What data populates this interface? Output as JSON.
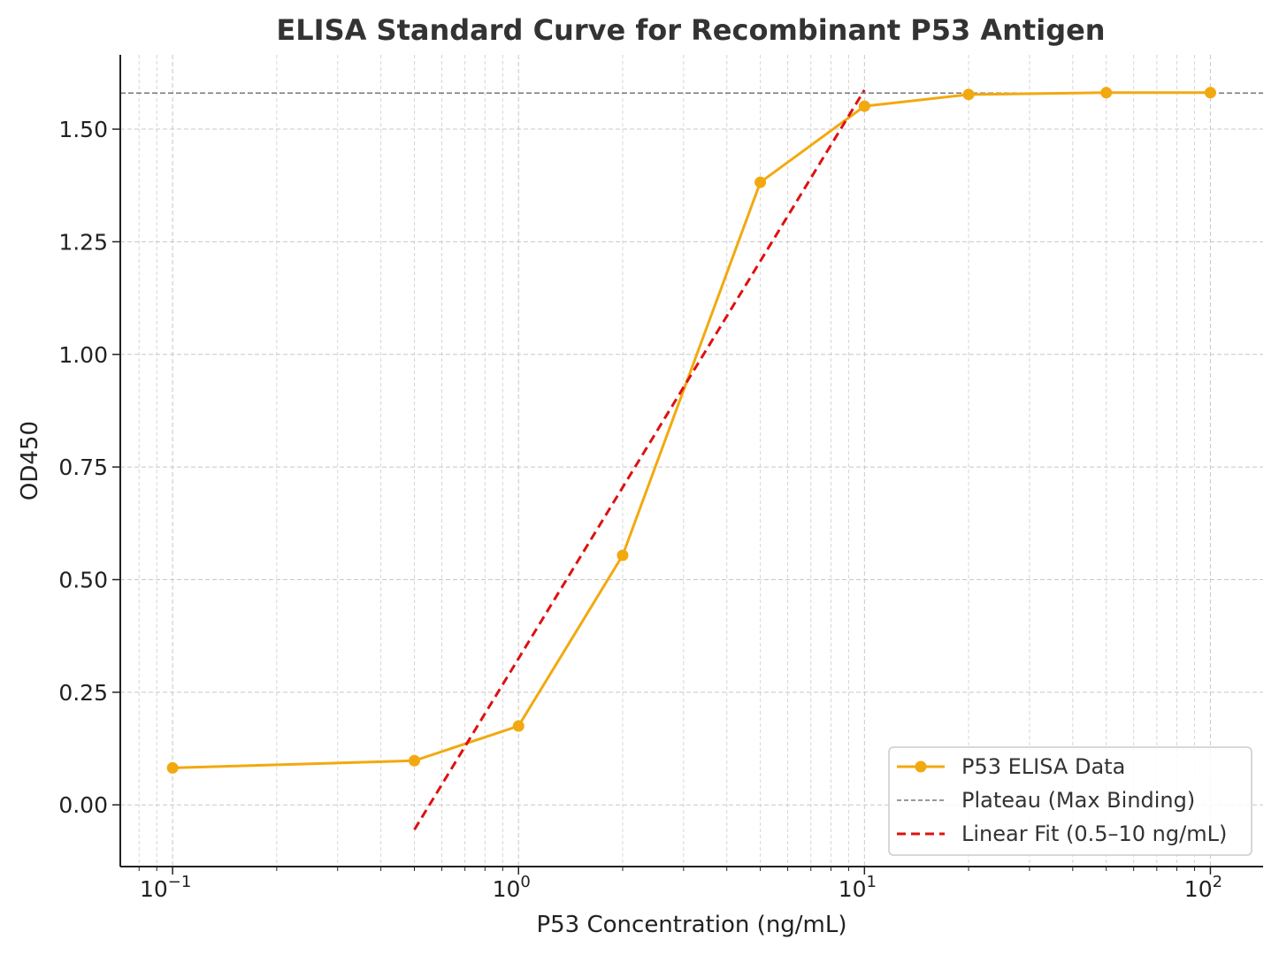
{
  "chart_data": {
    "type": "line",
    "title": "ELISA Standard Curve for Recombinant P53 Antigen",
    "xlabel": "P53 Concentration (ng/mL)",
    "ylabel": "OD450",
    "xscale": "log",
    "xlim": [
      0.0706,
      142
    ],
    "ylim": [
      -0.137,
      1.665
    ],
    "xticks": [
      {
        "value": 0.1,
        "base": "10",
        "exp": "−1"
      },
      {
        "value": 1,
        "base": "10",
        "exp": "0"
      },
      {
        "value": 10,
        "base": "10",
        "exp": "1"
      },
      {
        "value": 100,
        "base": "10",
        "exp": "2"
      }
    ],
    "yticks": [
      {
        "value": 0,
        "label": "0.00"
      },
      {
        "value": 0.25,
        "label": "0.25"
      },
      {
        "value": 0.5,
        "label": "0.50"
      },
      {
        "value": 0.75,
        "label": "0.75"
      },
      {
        "value": 1.0,
        "label": "1.00"
      },
      {
        "value": 1.25,
        "label": "1.25"
      },
      {
        "value": 1.5,
        "label": "1.50"
      }
    ],
    "grid": true,
    "legend_position": "bottom-right",
    "series": [
      {
        "name": "P53 ELISA Data",
        "style": "solid-marker",
        "color": "#f2a90f",
        "x": [
          0.1,
          0.5,
          1,
          2,
          5,
          10,
          20,
          50,
          100
        ],
        "y": [
          0.082,
          0.098,
          0.175,
          0.554,
          1.382,
          1.551,
          1.577,
          1.581,
          1.581
        ]
      },
      {
        "name": "Plateau (Max Binding)",
        "style": "dashed-horizontal",
        "color": "#777777",
        "y": 1.58
      },
      {
        "name": "Linear Fit (0.5–10 ng/mL)",
        "style": "dashed",
        "color": "#dd1111",
        "x": [
          0.5,
          10
        ],
        "y": [
          -0.055,
          1.587
        ]
      }
    ]
  }
}
